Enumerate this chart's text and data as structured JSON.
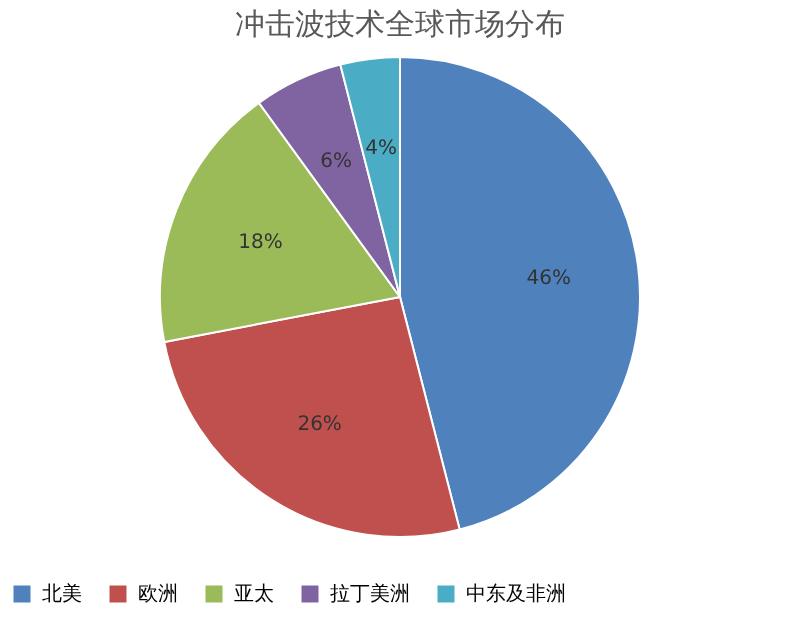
{
  "chart_data": {
    "type": "pie",
    "title": "冲击波技术全球市场分布",
    "categories": [
      "北美",
      "欧洲",
      "亚太",
      "拉丁美洲",
      "中东及非洲"
    ],
    "values": [
      46,
      26,
      18,
      6,
      4
    ],
    "value_labels": [
      "46%",
      "26%",
      "18%",
      "6%",
      "4%"
    ],
    "colors": [
      "#4f81bd",
      "#c0504d",
      "#9bbb59",
      "#8064a2",
      "#4bacc6"
    ],
    "legend": "bottom"
  }
}
